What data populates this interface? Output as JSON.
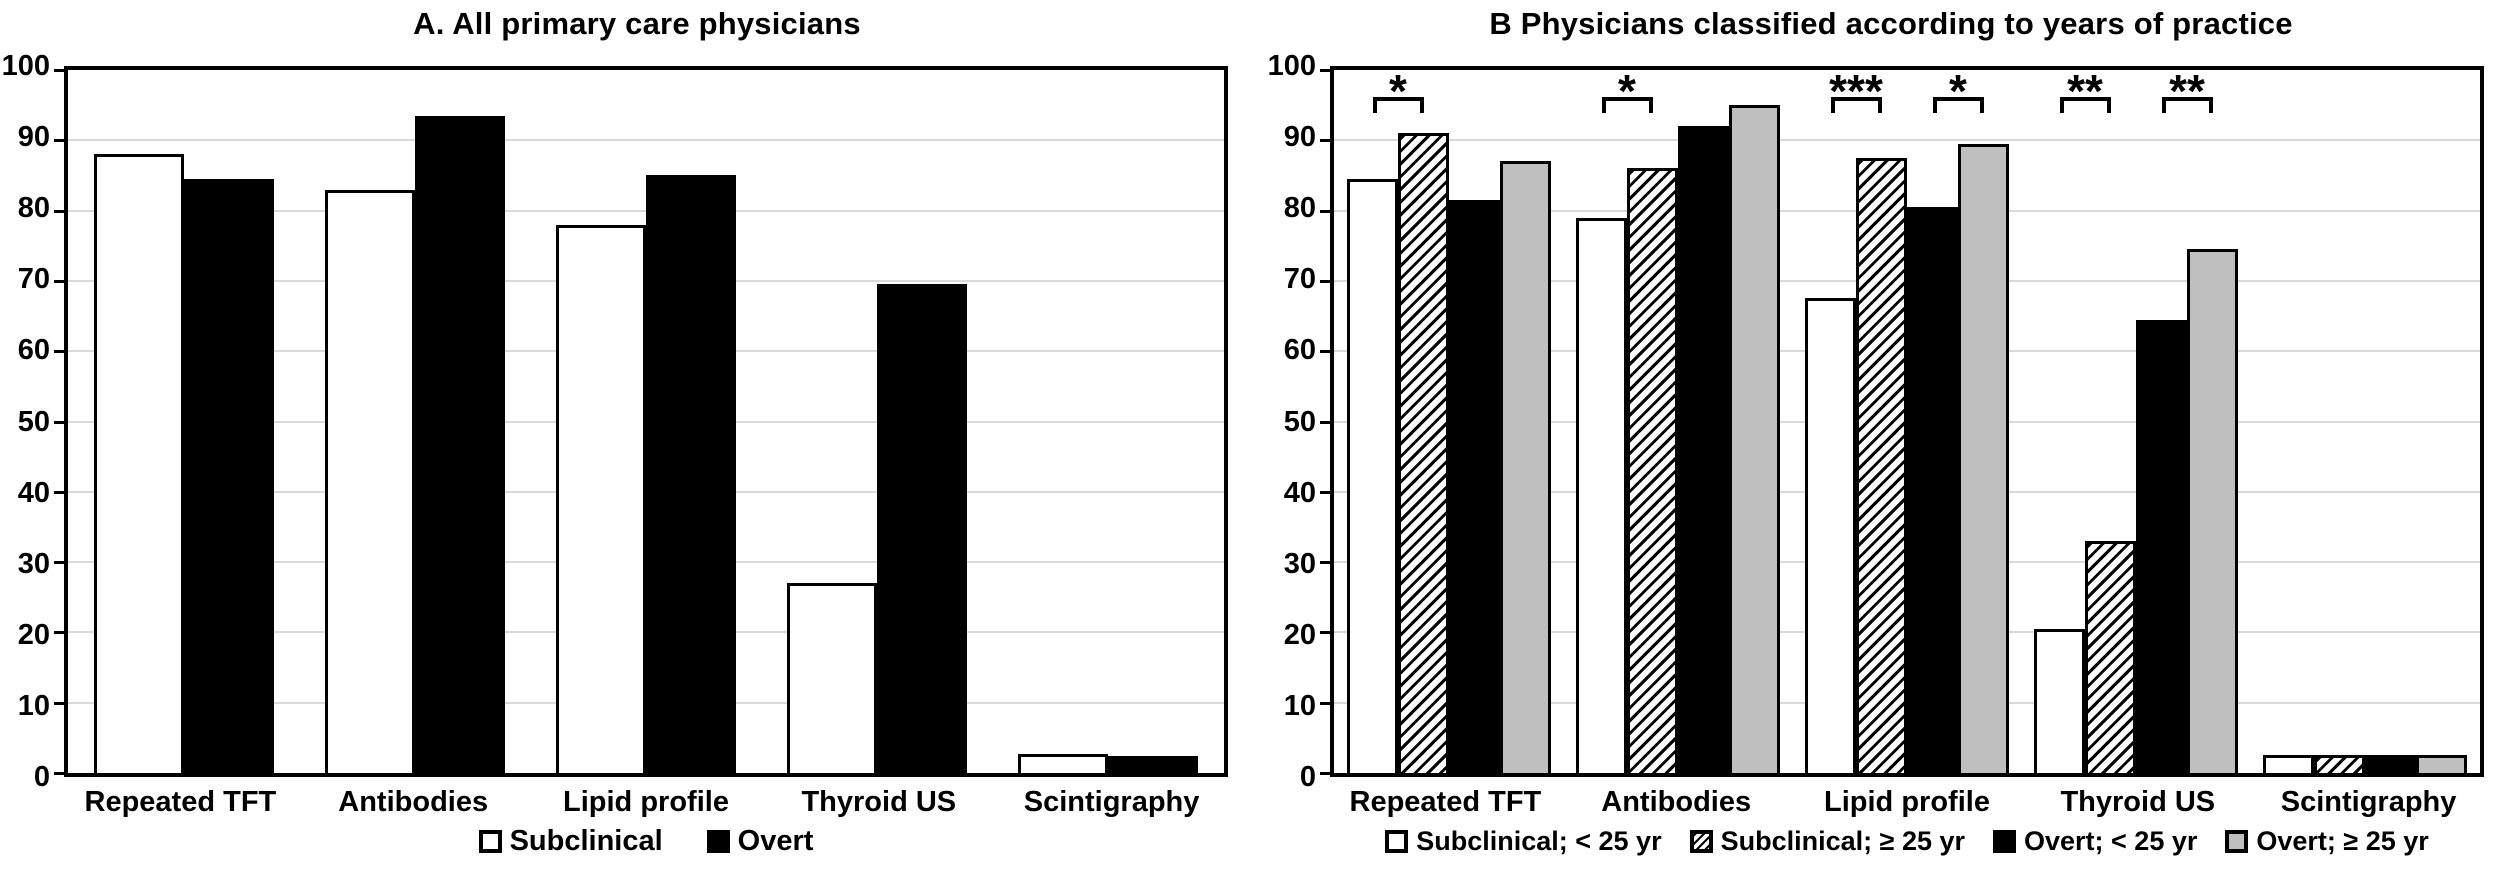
{
  "colors": {
    "bar_white": "#ffffff",
    "bar_black": "#000000",
    "bar_gray": "#bfbfbf",
    "axis": "#000000",
    "grid_line": "#d9d9d9",
    "text": "#000000",
    "background": "#ffffff"
  },
  "chart_data": [
    {
      "type": "bar",
      "panel_label": "A",
      "title": "A. All primary care physicians",
      "categories": [
        "Repeated TFT",
        "Antibodies",
        "Lipid profile",
        "Thyroid US",
        "Scintigraphy"
      ],
      "series": [
        {
          "name": "Subclinical",
          "style": "white",
          "values": [
            88,
            83,
            78,
            27,
            2.7
          ]
        },
        {
          "name": "Overt",
          "style": "black",
          "values": [
            84.5,
            93.5,
            85,
            69.5,
            2.4
          ]
        }
      ],
      "ylim": [
        0,
        100
      ],
      "yticks": [
        0,
        10,
        20,
        30,
        40,
        50,
        60,
        70,
        80,
        90,
        100
      ],
      "grid": true,
      "legend_position": "bottom"
    },
    {
      "type": "bar",
      "panel_label": "B",
      "title": "B Physicians classified according to years of practice",
      "categories": [
        "Repeated TFT",
        "Antibodies",
        "Lipid profile",
        "Thyroid US",
        "Scintigraphy"
      ],
      "series": [
        {
          "name": "Subclinical; < 25 yr",
          "style": "white",
          "values": [
            84.5,
            79,
            67.5,
            20.5,
            2.5
          ]
        },
        {
          "name": "Subclinical; ≥ 25 yr",
          "style": "hatch",
          "values": [
            91,
            86,
            87.5,
            33,
            2.5
          ]
        },
        {
          "name": "Overt; < 25 yr",
          "style": "black",
          "values": [
            81.5,
            92,
            80.5,
            64.5,
            2.5
          ]
        },
        {
          "name": "Overt; ≥ 25 yr",
          "style": "gray",
          "values": [
            87,
            95,
            89.5,
            74.5,
            2.5
          ]
        }
      ],
      "ylim": [
        0,
        100
      ],
      "yticks": [
        0,
        10,
        20,
        30,
        40,
        50,
        60,
        70,
        80,
        90,
        100
      ],
      "grid": true,
      "legend_position": "bottom",
      "significance": [
        {
          "category": "Repeated TFT",
          "bars": [
            0,
            1
          ],
          "label": "*"
        },
        {
          "category": "Antibodies",
          "bars": [
            0,
            1
          ],
          "label": "*"
        },
        {
          "category": "Lipid profile",
          "bars": [
            0,
            1
          ],
          "label": "***"
        },
        {
          "category": "Lipid profile",
          "bars": [
            2,
            3
          ],
          "label": "*"
        },
        {
          "category": "Thyroid US",
          "bars": [
            0,
            1
          ],
          "label": "**"
        },
        {
          "category": "Thyroid US",
          "bars": [
            2,
            3
          ],
          "label": "**"
        }
      ]
    }
  ]
}
